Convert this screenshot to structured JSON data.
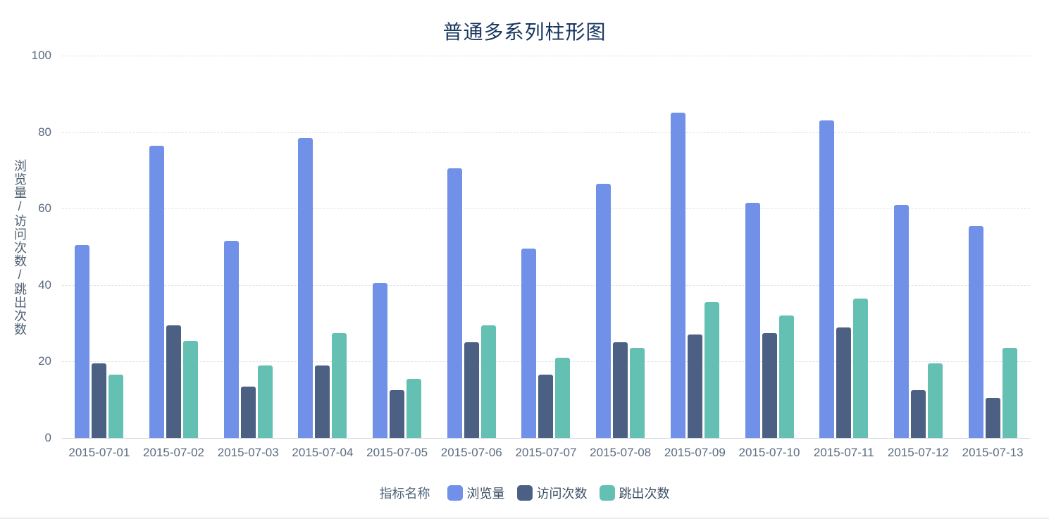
{
  "chart_data": {
    "type": "bar",
    "title": "普通多系列柱形图",
    "ylabel": "浏览量/访问次数/跳出次数",
    "xlabel": "",
    "ylim": [
      0,
      100
    ],
    "yticks": [
      0,
      20,
      40,
      60,
      80,
      100
    ],
    "grid": "horizontal-dashed",
    "legend_title": "指标名称",
    "legend_position": "bottom-center",
    "categories": [
      "2015-07-01",
      "2015-07-02",
      "2015-07-03",
      "2015-07-04",
      "2015-07-05",
      "2015-07-06",
      "2015-07-07",
      "2015-07-08",
      "2015-07-09",
      "2015-07-10",
      "2015-07-11",
      "2015-07-12",
      "2015-07-13"
    ],
    "series": [
      {
        "name": "浏览量",
        "color": "#7191E9",
        "values": [
          50.5,
          76.5,
          51.5,
          78.5,
          40.5,
          70.5,
          49.5,
          66.5,
          85,
          61.5,
          83,
          61,
          55.5
        ]
      },
      {
        "name": "访问次数",
        "color": "#4C6084",
        "values": [
          19.5,
          29.5,
          13.5,
          19,
          12.5,
          25,
          16.5,
          25,
          27,
          27.5,
          29,
          12.5,
          10.5
        ]
      },
      {
        "name": "跳出次数",
        "color": "#63C0B3",
        "values": [
          16.5,
          25.5,
          19,
          27.5,
          15.5,
          29.5,
          21,
          23.5,
          35.5,
          32,
          36.5,
          19.5,
          23.5
        ]
      }
    ],
    "colors": {
      "title_text": "#17355E",
      "axis_text": "#5A6B80",
      "axis_line": "#D9DDE1",
      "gridline": "#E2E2E2",
      "background": "#FFFFFF"
    }
  }
}
